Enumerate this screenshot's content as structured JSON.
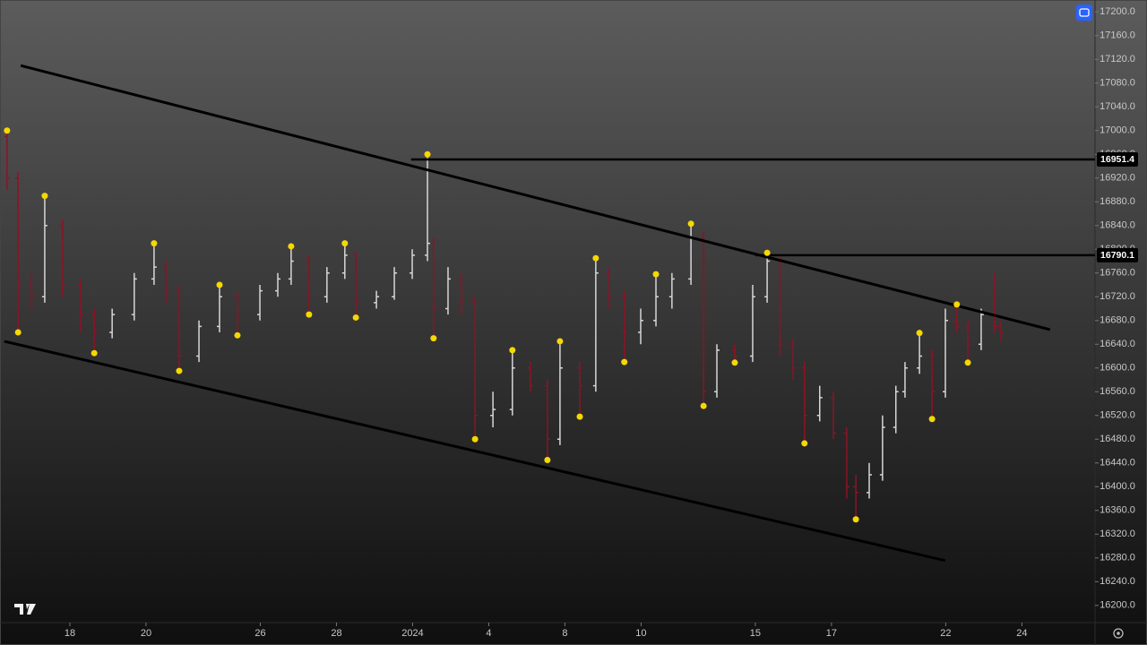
{
  "chart_data": {
    "type": "ohlc",
    "up_color": "#d6d6d6",
    "down_color": "#8a1426",
    "pivot_color": "#f5d800",
    "line_color": "#000000",
    "xlim": [
      -1.835,
      26.92
    ],
    "ylim": [
      16171,
      17220
    ],
    "xticks": [
      {
        "value": 0,
        "label": "18"
      },
      {
        "value": 2,
        "label": "20"
      },
      {
        "value": 5,
        "label": "26"
      },
      {
        "value": 7,
        "label": "28"
      },
      {
        "value": 9,
        "label": "2024"
      },
      {
        "value": 11,
        "label": "4"
      },
      {
        "value": 13,
        "label": "8"
      },
      {
        "value": 15,
        "label": "10"
      },
      {
        "value": 18,
        "label": "15"
      },
      {
        "value": 20,
        "label": "17"
      },
      {
        "value": 23,
        "label": "22"
      },
      {
        "value": 25,
        "label": "24"
      }
    ],
    "yticks": [
      {
        "value": 17200,
        "label": "17200.0"
      },
      {
        "value": 17160,
        "label": "17160.0"
      },
      {
        "value": 17120,
        "label": "17120.0"
      },
      {
        "value": 17080,
        "label": "17080.0"
      },
      {
        "value": 17040,
        "label": "17040.0"
      },
      {
        "value": 17000,
        "label": "17000.0"
      },
      {
        "value": 16960,
        "label": "16960.0"
      },
      {
        "value": 16920,
        "label": "16920.0"
      },
      {
        "value": 16880,
        "label": "16880.0"
      },
      {
        "value": 16840,
        "label": "16840.0"
      },
      {
        "value": 16800,
        "label": "16800.0"
      },
      {
        "value": 16760,
        "label": "16760.0"
      },
      {
        "value": 16720,
        "label": "16720.0"
      },
      {
        "value": 16680,
        "label": "16680.0"
      },
      {
        "value": 16640,
        "label": "16640.0"
      },
      {
        "value": 16600,
        "label": "16600.0"
      },
      {
        "value": 16560,
        "label": "16560.0"
      },
      {
        "value": 16520,
        "label": "16520.0"
      },
      {
        "value": 16480,
        "label": "16480.0"
      },
      {
        "value": 16440,
        "label": "16440.0"
      },
      {
        "value": 16400,
        "label": "16400.0"
      },
      {
        "value": 16360,
        "label": "16360.0"
      },
      {
        "value": 16320,
        "label": "16320.0"
      },
      {
        "value": 16280,
        "label": "16280.0"
      },
      {
        "value": 16240,
        "label": "16240.0"
      },
      {
        "value": 16200,
        "label": "16200.0"
      }
    ],
    "bars": [
      [
        -1.65,
        16990,
        17000,
        16900,
        16920
      ],
      [
        -1.36,
        16920,
        16930,
        16660,
        16740
      ],
      [
        -1.01,
        16740,
        16760,
        16700,
        16720
      ],
      [
        -0.66,
        16720,
        16890,
        16710,
        16840
      ],
      [
        -0.19,
        16840,
        16850,
        16720,
        16740
      ],
      [
        0.28,
        16740,
        16750,
        16660,
        16690
      ],
      [
        0.64,
        16690,
        16700,
        16625,
        16660
      ],
      [
        1.11,
        16660,
        16700,
        16650,
        16690
      ],
      [
        1.69,
        16690,
        16760,
        16680,
        16750
      ],
      [
        2.21,
        16750,
        16810,
        16740,
        16770
      ],
      [
        2.52,
        16770,
        16780,
        16710,
        16730
      ],
      [
        2.87,
        16730,
        16740,
        16595,
        16620
      ],
      [
        3.39,
        16620,
        16680,
        16610,
        16670
      ],
      [
        3.93,
        16670,
        16740,
        16660,
        16720
      ],
      [
        4.4,
        16720,
        16730,
        16655,
        16690
      ],
      [
        4.99,
        16690,
        16740,
        16680,
        16730
      ],
      [
        5.46,
        16730,
        16760,
        16720,
        16750
      ],
      [
        5.81,
        16750,
        16805,
        16740,
        16780
      ],
      [
        6.28,
        16780,
        16790,
        16690,
        16720
      ],
      [
        6.75,
        16720,
        16770,
        16710,
        16760
      ],
      [
        7.22,
        16760,
        16810,
        16750,
        16790
      ],
      [
        7.51,
        16790,
        16795,
        16685,
        16710
      ],
      [
        8.05,
        16710,
        16730,
        16700,
        16720
      ],
      [
        8.52,
        16720,
        16770,
        16715,
        16760
      ],
      [
        8.99,
        16760,
        16800,
        16750,
        16790
      ],
      [
        9.39,
        16790,
        16960,
        16780,
        16810
      ],
      [
        9.55,
        16810,
        16820,
        16650,
        16700
      ],
      [
        9.93,
        16700,
        16770,
        16690,
        16750
      ],
      [
        10.28,
        16750,
        16760,
        16690,
        16710
      ],
      [
        10.64,
        16710,
        16720,
        16480,
        16520
      ],
      [
        11.11,
        16520,
        16560,
        16500,
        16530
      ],
      [
        11.62,
        16530,
        16630,
        16520,
        16600
      ],
      [
        12.09,
        16600,
        16610,
        16560,
        16570
      ],
      [
        12.54,
        16570,
        16580,
        16445,
        16480
      ],
      [
        12.87,
        16480,
        16645,
        16470,
        16600
      ],
      [
        13.39,
        16600,
        16610,
        16518,
        16570
      ],
      [
        13.81,
        16570,
        16785,
        16560,
        16760
      ],
      [
        14.16,
        16760,
        16770,
        16700,
        16720
      ],
      [
        14.56,
        16720,
        16730,
        16610,
        16660
      ],
      [
        14.99,
        16660,
        16700,
        16640,
        16680
      ],
      [
        15.39,
        16680,
        16758,
        16670,
        16720
      ],
      [
        15.81,
        16720,
        16760,
        16700,
        16750
      ],
      [
        16.31,
        16750,
        16843,
        16740,
        16820
      ],
      [
        16.64,
        16820,
        16830,
        16536,
        16560
      ],
      [
        16.99,
        16560,
        16640,
        16550,
        16630
      ],
      [
        17.46,
        16630,
        16640,
        16609,
        16620
      ],
      [
        17.93,
        16620,
        16740,
        16610,
        16720
      ],
      [
        18.31,
        16720,
        16794,
        16710,
        16780
      ],
      [
        18.64,
        16780,
        16790,
        16620,
        16640
      ],
      [
        18.99,
        16640,
        16650,
        16580,
        16600
      ],
      [
        19.29,
        16600,
        16610,
        16473,
        16520
      ],
      [
        19.69,
        16520,
        16570,
        16510,
        16550
      ],
      [
        20.05,
        16550,
        16560,
        16480,
        16490
      ],
      [
        20.4,
        16490,
        16500,
        16380,
        16400
      ],
      [
        20.64,
        16400,
        16420,
        16345,
        16390
      ],
      [
        20.99,
        16390,
        16440,
        16380,
        16420
      ],
      [
        21.34,
        16420,
        16520,
        16410,
        16500
      ],
      [
        21.69,
        16500,
        16570,
        16490,
        16560
      ],
      [
        21.93,
        16560,
        16610,
        16550,
        16600
      ],
      [
        22.31,
        16600,
        16659,
        16590,
        16620
      ],
      [
        22.64,
        16620,
        16630,
        16514,
        16560
      ],
      [
        22.99,
        16560,
        16700,
        16550,
        16680
      ],
      [
        23.29,
        16680,
        16707,
        16660,
        16670
      ],
      [
        23.58,
        16670,
        16680,
        16609,
        16640
      ],
      [
        23.93,
        16640,
        16700,
        16630,
        16690
      ],
      [
        24.28,
        16690,
        16760,
        16660,
        16670
      ],
      [
        24.45,
        16670,
        16680,
        16645,
        16660
      ]
    ],
    "pivots": [
      [
        -1.65,
        17000
      ],
      [
        -1.36,
        16660
      ],
      [
        -0.66,
        16890
      ],
      [
        0.64,
        16625
      ],
      [
        2.21,
        16810
      ],
      [
        2.87,
        16595
      ],
      [
        3.93,
        16740
      ],
      [
        4.4,
        16655
      ],
      [
        5.81,
        16805
      ],
      [
        6.28,
        16690
      ],
      [
        7.22,
        16810
      ],
      [
        7.51,
        16685
      ],
      [
        9.39,
        16960
      ],
      [
        9.55,
        16650
      ],
      [
        10.64,
        16480
      ],
      [
        11.62,
        16630
      ],
      [
        12.54,
        16445
      ],
      [
        12.87,
        16645
      ],
      [
        13.39,
        16518
      ],
      [
        13.81,
        16785
      ],
      [
        14.56,
        16610
      ],
      [
        15.39,
        16758
      ],
      [
        16.31,
        16843
      ],
      [
        16.64,
        16536
      ],
      [
        17.46,
        16609
      ],
      [
        18.31,
        16794
      ],
      [
        19.29,
        16473
      ],
      [
        20.64,
        16345
      ],
      [
        22.31,
        16659
      ],
      [
        22.64,
        16514
      ],
      [
        23.29,
        16707
      ],
      [
        23.58,
        16609
      ]
    ],
    "trendlines": [
      {
        "x": [
          -1.29,
          25.74
        ],
        "y": [
          17109.5,
          16664.6
        ]
      },
      {
        "x": [
          -1.72,
          22.99
        ],
        "y": [
          16644.9,
          16275.4
        ]
      }
    ],
    "levels": [
      {
        "value": 16951.4,
        "x_start": 8.96
      },
      {
        "value": 16790.1,
        "x_start": 18.0
      }
    ]
  }
}
